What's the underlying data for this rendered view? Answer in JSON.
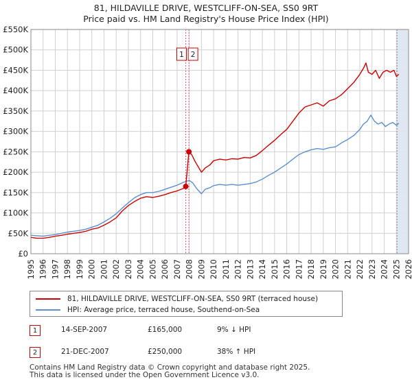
{
  "header": {
    "title": "81, HILDAVILLE DRIVE, WESTCLIFF-ON-SEA, SS0 9RT",
    "subtitle": "Price paid vs. HM Land Registry's House Price Index (HPI)"
  },
  "colors": {
    "property": "#cc0000",
    "hpi": "#5b8fcc",
    "marker_border": "#c00000",
    "shade": "#dbe5f1",
    "grid": "#d0d0d0"
  },
  "chart_data": {
    "type": "line",
    "title": "Price paid vs. HM Land Registry's House Price Index (HPI)",
    "xlabel": "",
    "ylabel": "",
    "xlim": [
      1995,
      2026
    ],
    "ylim": [
      0,
      550000
    ],
    "x_ticks": [
      "1995",
      "1996",
      "1997",
      "1998",
      "1999",
      "2000",
      "2001",
      "2002",
      "2003",
      "2004",
      "2005",
      "2006",
      "2007",
      "2008",
      "2009",
      "2010",
      "2011",
      "2012",
      "2013",
      "2014",
      "2015",
      "2016",
      "2017",
      "2018",
      "2019",
      "2020",
      "2021",
      "2022",
      "2023",
      "2024",
      "2025",
      "2026"
    ],
    "y_ticks": [
      {
        "value": 0,
        "label": "£0"
      },
      {
        "value": 50000,
        "label": "£50K"
      },
      {
        "value": 100000,
        "label": "£100K"
      },
      {
        "value": 150000,
        "label": "£150K"
      },
      {
        "value": 200000,
        "label": "£200K"
      },
      {
        "value": 250000,
        "label": "£250K"
      },
      {
        "value": 300000,
        "label": "£300K"
      },
      {
        "value": 350000,
        "label": "£350K"
      },
      {
        "value": 400000,
        "label": "£400K"
      },
      {
        "value": 450000,
        "label": "£450K"
      },
      {
        "value": 500000,
        "label": "£500K"
      },
      {
        "value": 550000,
        "label": "£550K"
      }
    ],
    "series": [
      {
        "name": "81, HILDAVILLE DRIVE, WESTCLIFF-ON-SEA, SS0 9RT (terraced house)",
        "color": "#cc0000",
        "x": [
          1995.0,
          1995.5,
          1996.0,
          1996.5,
          1997.0,
          1997.5,
          1998.0,
          1998.5,
          1999.0,
          1999.5,
          2000.0,
          2000.5,
          2001.0,
          2001.5,
          2002.0,
          2002.5,
          2003.0,
          2003.5,
          2004.0,
          2004.5,
          2005.0,
          2005.5,
          2006.0,
          2006.5,
          2007.0,
          2007.5,
          2007.71,
          2007.97,
          2008.2,
          2008.5,
          2009.0,
          2009.3,
          2009.7,
          2010.0,
          2010.5,
          2011.0,
          2011.5,
          2012.0,
          2012.5,
          2013.0,
          2013.5,
          2014.0,
          2014.5,
          2015.0,
          2015.5,
          2016.0,
          2016.5,
          2017.0,
          2017.5,
          2018.0,
          2018.5,
          2019.0,
          2019.5,
          2020.0,
          2020.5,
          2021.0,
          2021.5,
          2022.0,
          2022.3,
          2022.5,
          2022.7,
          2023.0,
          2023.3,
          2023.6,
          2023.9,
          2024.2,
          2024.5,
          2024.8,
          2025.0,
          2025.2
        ],
        "y": [
          40000,
          38000,
          38000,
          40000,
          43000,
          45000,
          48000,
          50000,
          52000,
          55000,
          60000,
          63000,
          70000,
          78000,
          88000,
          105000,
          118000,
          128000,
          136000,
          140000,
          138000,
          141000,
          145000,
          150000,
          154000,
          160000,
          165000,
          250000,
          243000,
          225000,
          200000,
          210000,
          218000,
          228000,
          232000,
          230000,
          233000,
          232000,
          236000,
          235000,
          241000,
          253000,
          266000,
          278000,
          292000,
          305000,
          325000,
          345000,
          360000,
          365000,
          370000,
          362000,
          375000,
          380000,
          390000,
          405000,
          420000,
          440000,
          455000,
          468000,
          445000,
          440000,
          450000,
          430000,
          445000,
          450000,
          445000,
          450000,
          435000,
          440000
        ]
      },
      {
        "name": "HPI: Average price, terraced house, Southend-on-Sea",
        "color": "#5b8fcc",
        "x": [
          1995.0,
          1995.5,
          1996.0,
          1996.5,
          1997.0,
          1997.5,
          1998.0,
          1998.5,
          1999.0,
          1999.5,
          2000.0,
          2000.5,
          2001.0,
          2001.5,
          2002.0,
          2002.5,
          2003.0,
          2003.5,
          2004.0,
          2004.5,
          2005.0,
          2005.5,
          2006.0,
          2006.5,
          2007.0,
          2007.5,
          2008.0,
          2008.3,
          2008.6,
          2009.0,
          2009.3,
          2009.7,
          2010.0,
          2010.5,
          2011.0,
          2011.5,
          2012.0,
          2012.5,
          2013.0,
          2013.5,
          2014.0,
          2014.5,
          2015.0,
          2015.5,
          2016.0,
          2016.5,
          2017.0,
          2017.5,
          2018.0,
          2018.5,
          2019.0,
          2019.5,
          2020.0,
          2020.5,
          2021.0,
          2021.5,
          2022.0,
          2022.3,
          2022.6,
          2022.9,
          2023.2,
          2023.5,
          2023.8,
          2024.1,
          2024.4,
          2024.7,
          2025.0,
          2025.2
        ],
        "y": [
          45000,
          44000,
          43000,
          45000,
          47000,
          50000,
          53000,
          55000,
          57000,
          60000,
          65000,
          70000,
          78000,
          87000,
          98000,
          112000,
          125000,
          137000,
          145000,
          150000,
          150000,
          153000,
          158000,
          163000,
          168000,
          175000,
          180000,
          173000,
          160000,
          147000,
          158000,
          162000,
          167000,
          170000,
          168000,
          170000,
          168000,
          170000,
          172000,
          176000,
          183000,
          192000,
          200000,
          210000,
          220000,
          232000,
          243000,
          250000,
          255000,
          258000,
          256000,
          260000,
          262000,
          272000,
          280000,
          290000,
          305000,
          318000,
          325000,
          340000,
          325000,
          318000,
          322000,
          312000,
          318000,
          322000,
          315000,
          320000
        ]
      }
    ],
    "sales": [
      {
        "label": "1",
        "x": 2007.71,
        "y": 165000,
        "date": "14-SEP-2007",
        "price": "£165,000",
        "hpi_delta": "9% ↓ HPI"
      },
      {
        "label": "2",
        "x": 2007.97,
        "y": 250000,
        "date": "21-DEC-2007",
        "price": "£250,000",
        "hpi_delta": "38% ↑ HPI"
      }
    ],
    "shaded_region": {
      "from": 2025.05,
      "to": 2026.0
    }
  },
  "legend": {
    "property_label": "81, HILDAVILLE DRIVE, WESTCLIFF-ON-SEA, SS0 9RT (terraced house)",
    "hpi_label": "HPI: Average price, terraced house, Southend-on-Sea"
  },
  "footer": {
    "line1": "Contains HM Land Registry data © Crown copyright and database right 2025.",
    "line2": "This data is licensed under the Open Government Licence v3.0."
  }
}
